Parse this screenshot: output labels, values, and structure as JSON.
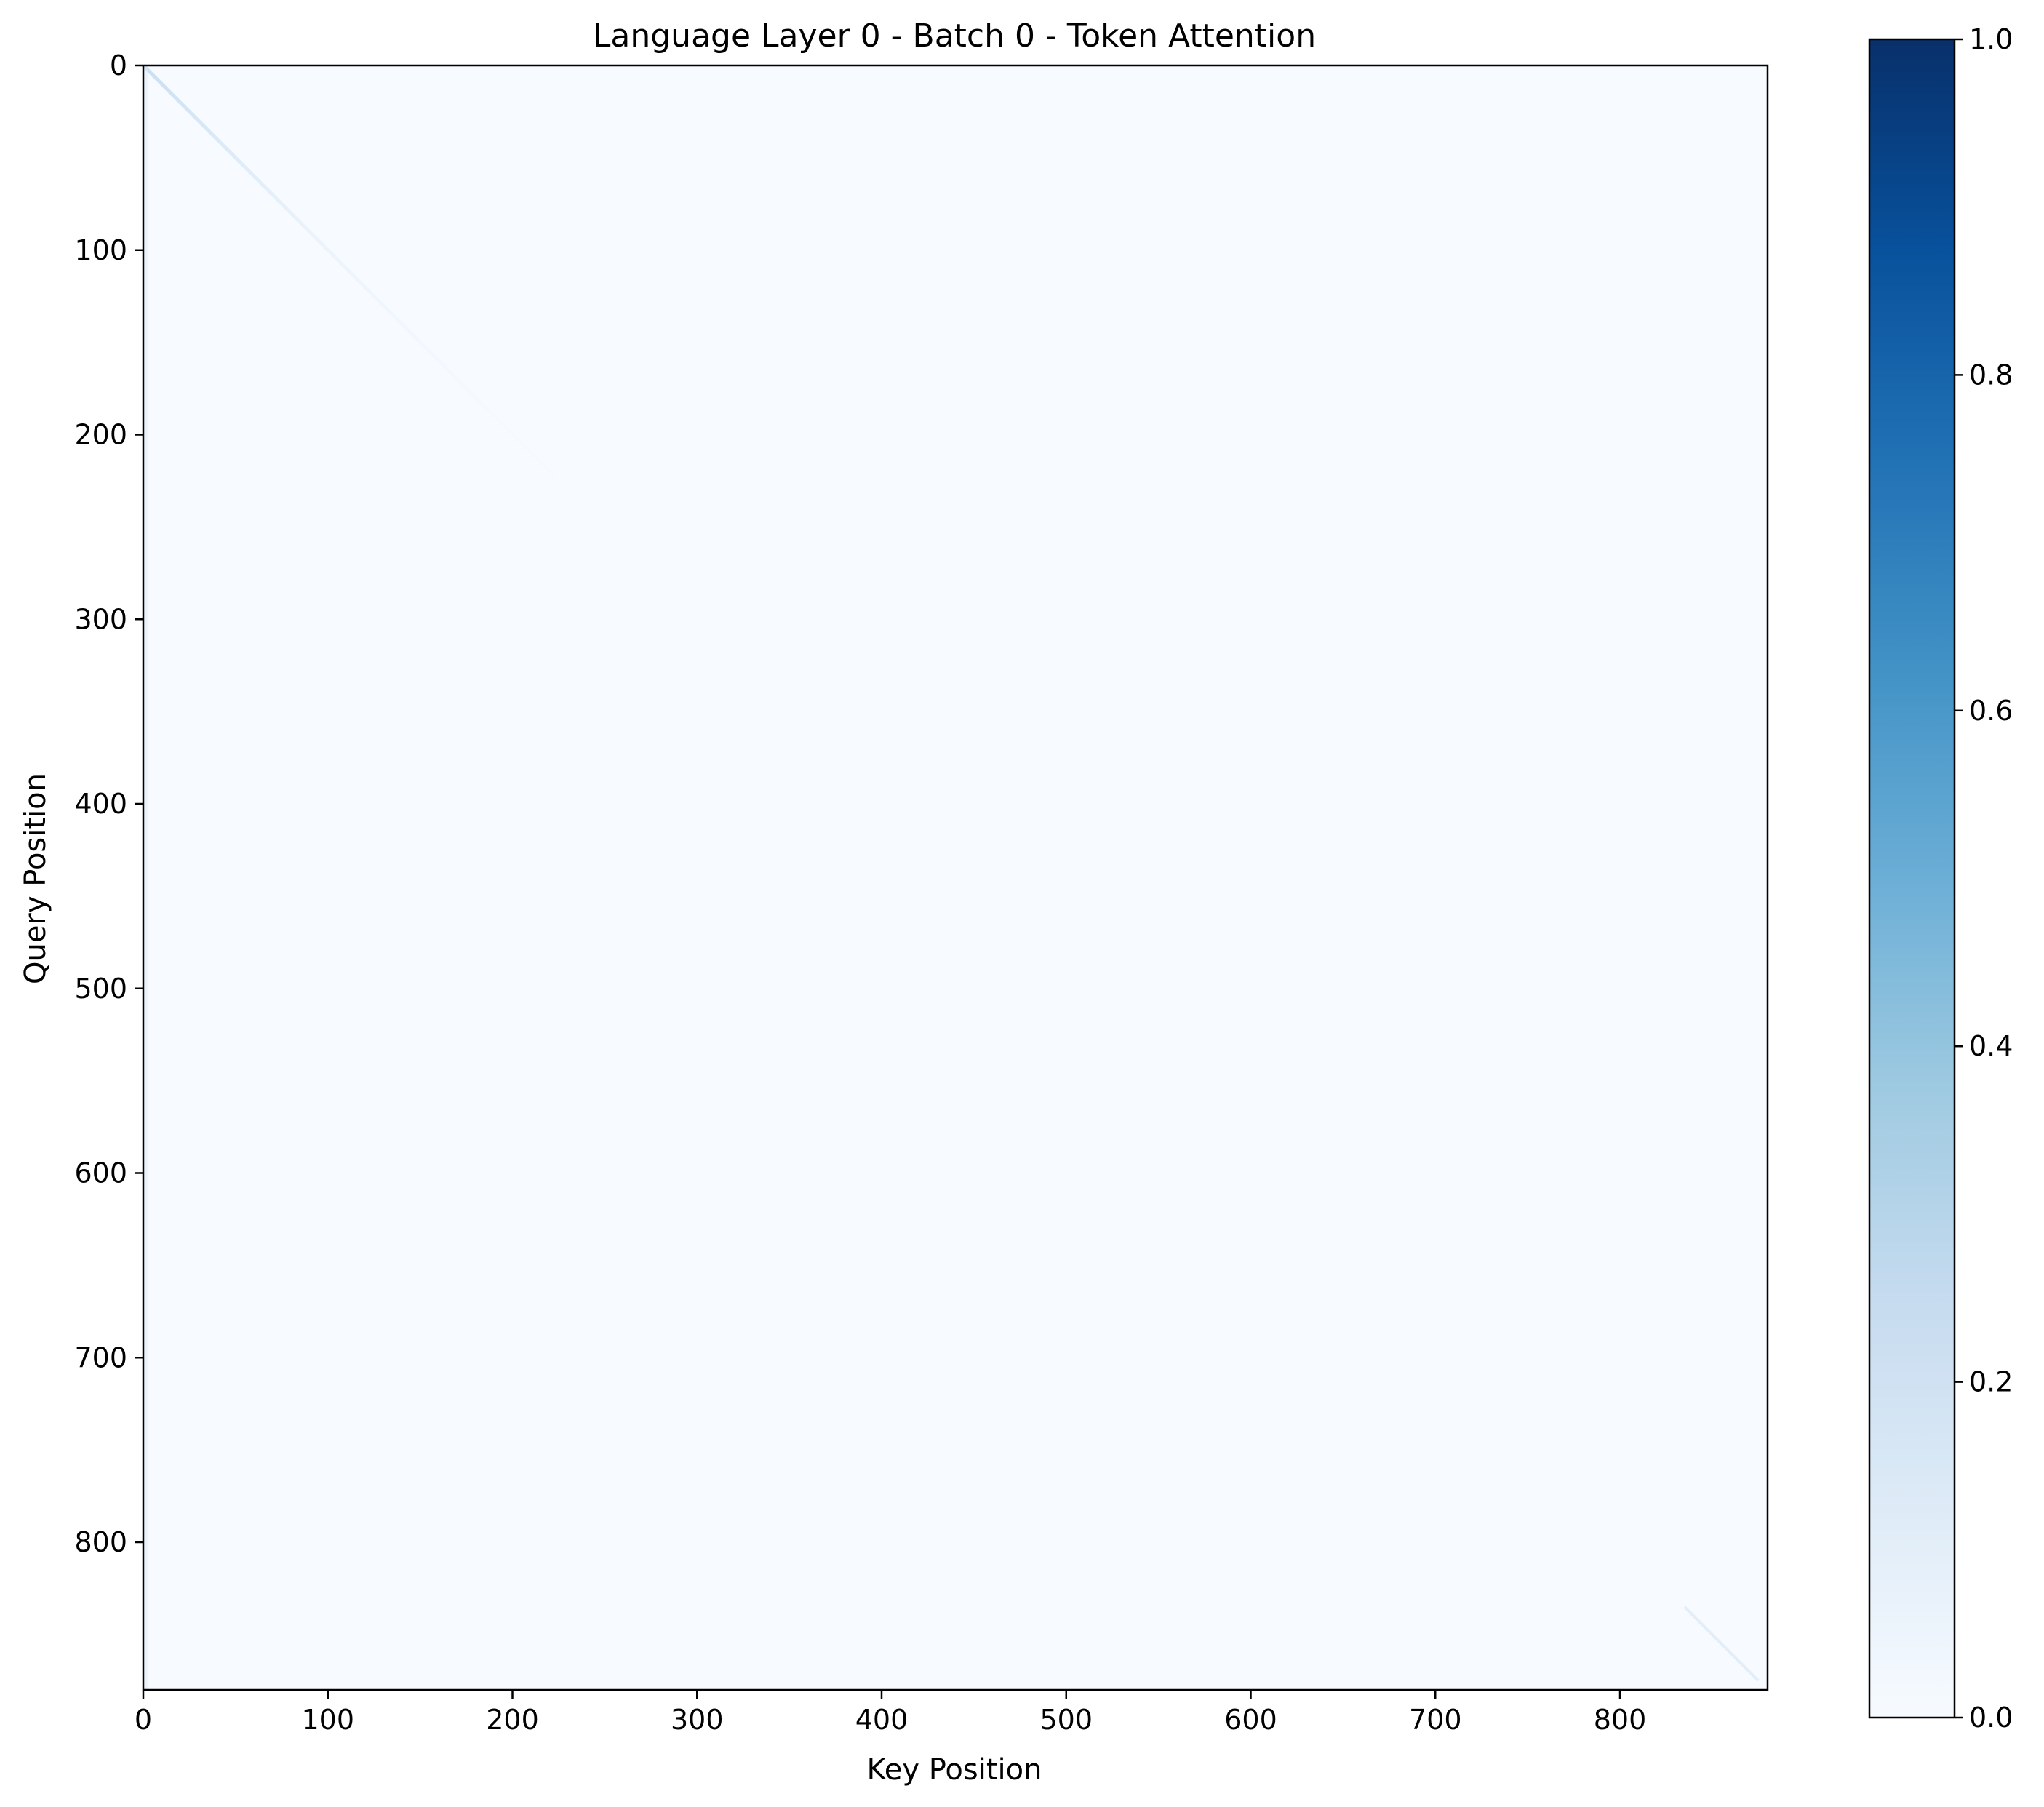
{
  "chart_data": {
    "type": "heatmap",
    "title": "Language Layer 0 - Batch 0 - Token Attention",
    "xlabel": "Key Position",
    "ylabel": "Query Position",
    "xlim": [
      0,
      880
    ],
    "ylim": [
      880,
      0
    ],
    "xticks": [
      0,
      100,
      200,
      300,
      400,
      500,
      600,
      700,
      800
    ],
    "yticks": [
      0,
      100,
      200,
      300,
      400,
      500,
      600,
      700,
      800
    ],
    "colormap": "Blues",
    "colorbar": {
      "range": [
        0.0,
        1.0
      ],
      "ticks": [
        "0.0",
        "0.2",
        "0.4",
        "0.6",
        "0.8",
        "1.0"
      ]
    },
    "background_value": 0.0,
    "features": [
      {
        "name": "main diagonal (early queries)",
        "from": [
          0,
          0
        ],
        "to": [
          260,
          260
        ],
        "value_start": 0.12,
        "value_end": 0.0
      },
      {
        "name": "first key column",
        "key": 0,
        "query_range": [
          0,
          880
        ],
        "value": 0.03
      },
      {
        "name": "main diagonal (late queries)",
        "from": [
          835,
          835
        ],
        "to": [
          875,
          875
        ],
        "value": 0.06
      }
    ],
    "grid": false
  }
}
